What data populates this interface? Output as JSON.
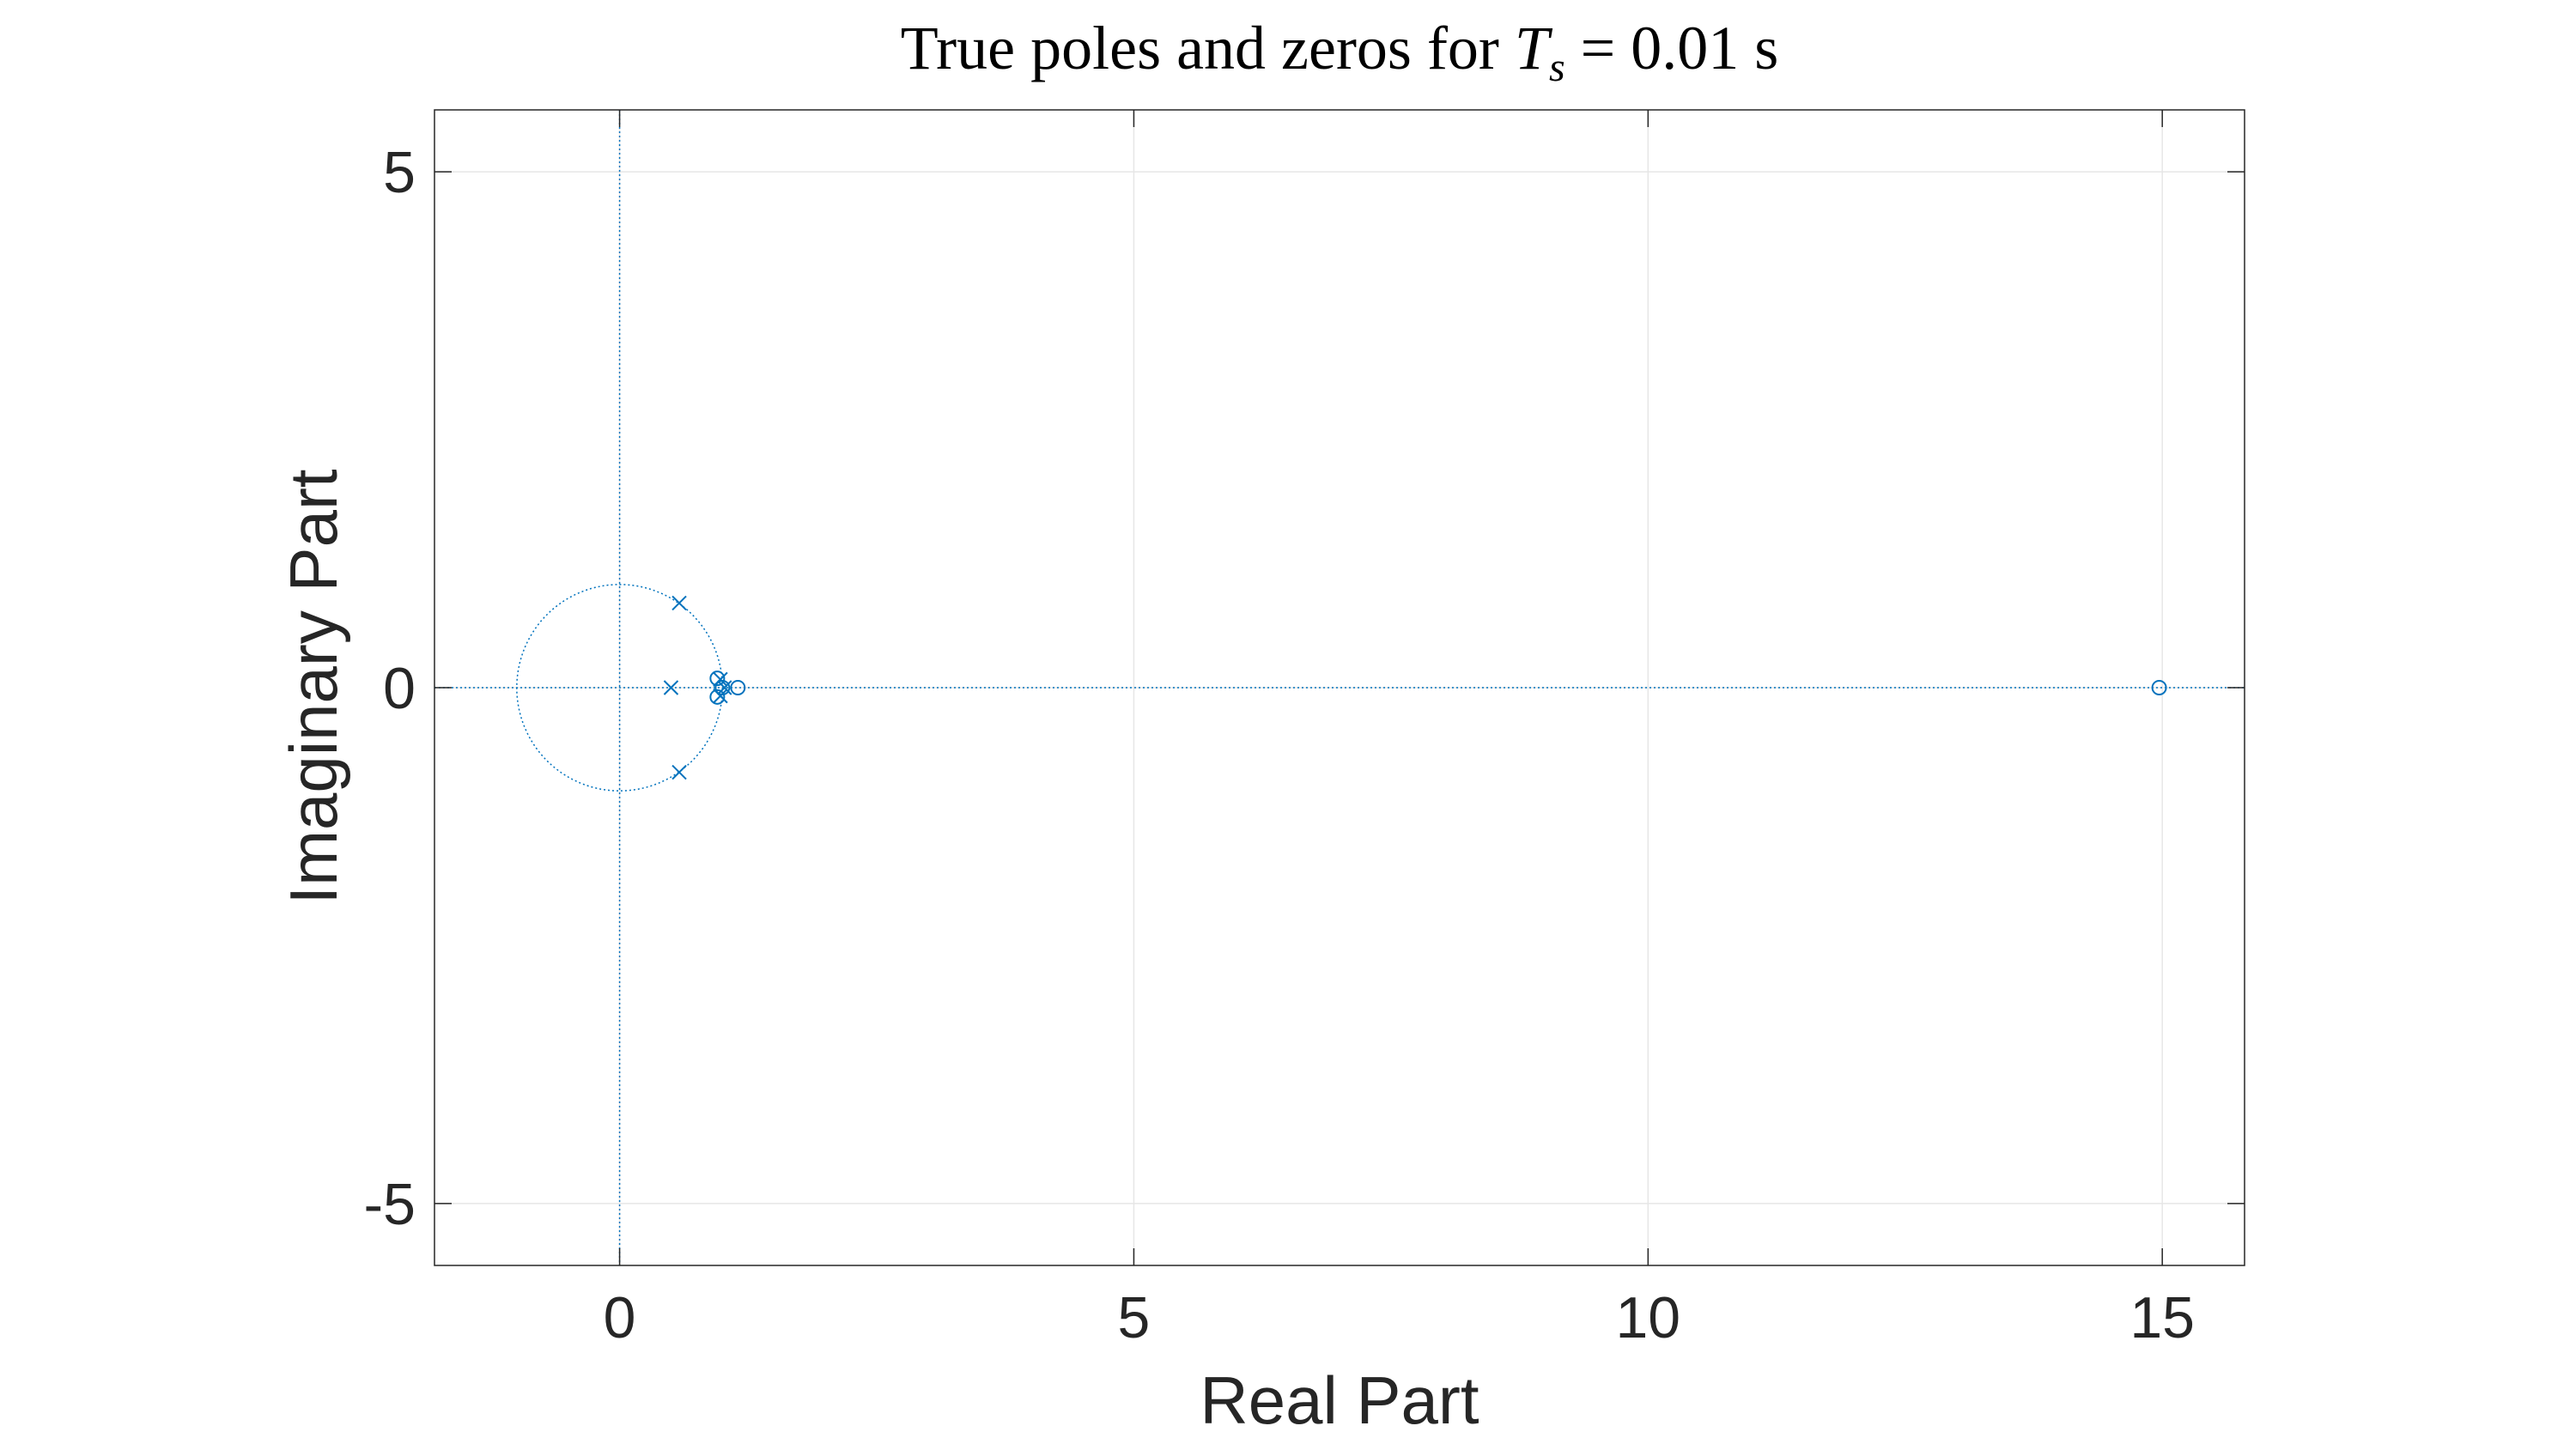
{
  "chart_data": {
    "type": "scatter",
    "title": {
      "prefix": "True poles and zeros for ",
      "symbol": "T",
      "subscript": "s",
      "suffix": " = 0.01 s"
    },
    "xlabel": "Real Part",
    "ylabel": "Imaginary Part",
    "xlim": [
      -1.8,
      15.8
    ],
    "ylim": [
      -5.6,
      5.6
    ],
    "xticks": [
      0,
      5,
      10,
      15
    ],
    "yticks": [
      -5,
      0,
      5
    ],
    "xtick_labels": [
      "0",
      "5",
      "10",
      "15"
    ],
    "ytick_labels": [
      "-5",
      "0",
      "5"
    ],
    "grid": true,
    "unit_circle": true,
    "series": [
      {
        "name": "poles",
        "marker": "x",
        "points": [
          {
            "x": 0.58,
            "y": 0.82
          },
          {
            "x": 0.58,
            "y": -0.82
          },
          {
            "x": 0.5,
            "y": 0.0
          },
          {
            "x": 0.98,
            "y": 0.08
          },
          {
            "x": 0.98,
            "y": -0.08
          },
          {
            "x": 1.02,
            "y": 0.0
          }
        ]
      },
      {
        "name": "zeros",
        "marker": "o",
        "points": [
          {
            "x": 0.95,
            "y": 0.09
          },
          {
            "x": 0.95,
            "y": -0.09
          },
          {
            "x": 1.0,
            "y": 0.0
          },
          {
            "x": 1.15,
            "y": 0.0
          },
          {
            "x": 14.97,
            "y": 0.0
          }
        ]
      }
    ],
    "colors": {
      "marker": "#0072bd",
      "grid": "#e6e6e6",
      "axes": "#262626",
      "background": "#ffffff"
    }
  }
}
